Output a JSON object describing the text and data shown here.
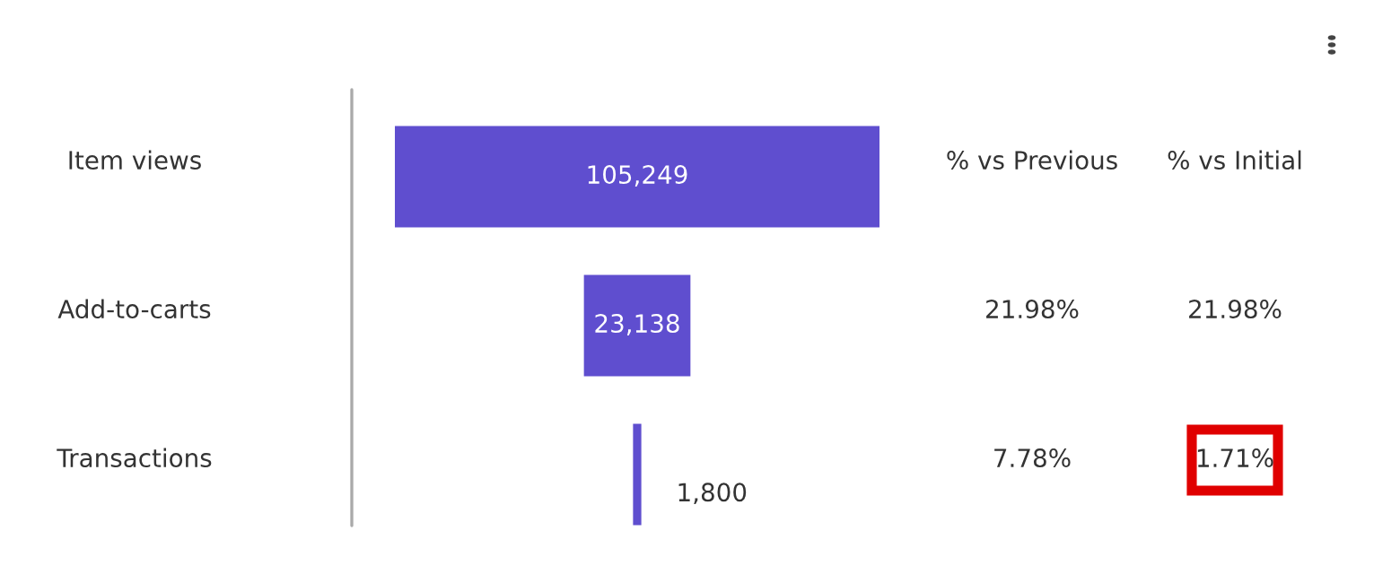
{
  "chart_data": {
    "type": "other",
    "categories": [
      "Item views",
      "Add-to-carts",
      "Transactions"
    ],
    "values": [
      105249,
      23138,
      1800
    ],
    "value_labels": [
      "105,249",
      "23,138",
      "1,800"
    ],
    "color": "#5f4ecf",
    "annotations": [
      "% vs Previous",
      "% vs Initial",
      "21.98%",
      "21.98%",
      "7.78%",
      "1.71%"
    ]
  }
}
